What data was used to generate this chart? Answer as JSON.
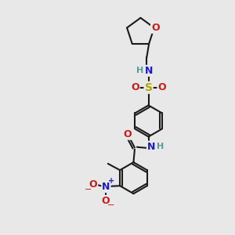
{
  "bg_color": "#e8e8e8",
  "bond_color": "#1a1a1a",
  "bond_width": 1.5,
  "atom_colors": {
    "C": "#1a1a1a",
    "H": "#5a9a9a",
    "N": "#1a1acc",
    "O": "#cc1a1a",
    "S": "#aaaa00"
  },
  "font_size": 9
}
